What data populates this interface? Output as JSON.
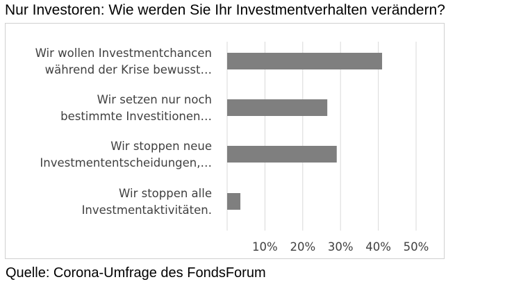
{
  "title": "Nur Investoren: Wie werden Sie Ihr Investmentverhalten verändern?",
  "source": "Quelle: Corona-Umfrage des FondsForum",
  "chart_data": {
    "type": "bar",
    "orientation": "horizontal",
    "categories": [
      [
        "Wir wollen Investmentchancen",
        "während der Krise bewusst…"
      ],
      [
        "Wir setzen nur noch",
        "bestimmte Investitionen…"
      ],
      [
        "Wir stoppen neue",
        "Investmententscheidungen,…"
      ],
      [
        "Wir stoppen alle",
        "Investmentaktivitäten."
      ]
    ],
    "values": [
      41,
      26.5,
      29,
      3.5
    ],
    "xlim": [
      0,
      50
    ],
    "xticks": [
      10,
      20,
      30,
      40,
      50
    ],
    "xtick_labels": [
      "10%",
      "20%",
      "30%",
      "40%",
      "50%"
    ],
    "grid": "vertical",
    "bar_color": "#7f7f7f",
    "grid_color": "#d9d9d9"
  }
}
